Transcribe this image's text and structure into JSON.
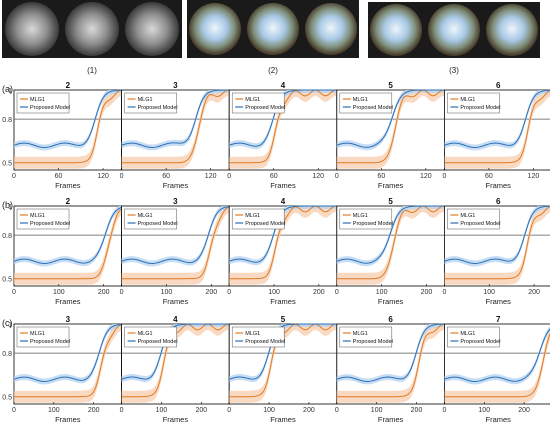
{
  "thumbnail_groups": [
    {
      "label": "(1)",
      "count": 3,
      "style": "indoor"
    },
    {
      "label": "(2)",
      "count": 3,
      "style": "outdoor"
    },
    {
      "label": "(3)",
      "count": 3,
      "style": "outdoor"
    }
  ],
  "chart_data": {
    "type": "line",
    "rows": [
      {
        "label": "(a)",
        "xlabel": "Frames",
        "xlim": [
          0,
          145
        ],
        "xticks": [
          0,
          60,
          120
        ],
        "ylim": [
          0.45,
          1.0
        ],
        "yticks": [
          0.5,
          0.8,
          1
        ],
        "threshold": 0.8,
        "panels": [
          {
            "title": "2",
            "event_frame": 110
          },
          {
            "title": "3",
            "event_frame": 100
          },
          {
            "title": "4",
            "event_frame": 60
          },
          {
            "title": "5",
            "event_frame": 75
          },
          {
            "title": "6",
            "event_frame": 110
          }
        ]
      },
      {
        "label": "(b)",
        "xlabel": "Frames",
        "xlim": [
          0,
          240
        ],
        "xticks": [
          0,
          100,
          200
        ],
        "ylim": [
          0.45,
          1.0
        ],
        "yticks": [
          0.5,
          0.8,
          1
        ],
        "threshold": 0.8,
        "panels": [
          {
            "title": "2",
            "event_frame": 205
          },
          {
            "title": "3",
            "event_frame": 195
          },
          {
            "title": "4",
            "event_frame": 100
          },
          {
            "title": "5",
            "event_frame": 120
          },
          {
            "title": "6",
            "event_frame": 180
          }
        ]
      },
      {
        "label": "(c)",
        "xlabel": "Frames",
        "xlim": [
          0,
          270
        ],
        "xticks": [
          0,
          100,
          200
        ],
        "ylim": [
          0.45,
          1.0
        ],
        "yticks": [
          0.5,
          0.8,
          1
        ],
        "threshold": 0.8,
        "panels": [
          {
            "title": "3",
            "event_frame": 215
          },
          {
            "title": "4",
            "event_frame": 100
          },
          {
            "title": "5",
            "event_frame": 100
          },
          {
            "title": "6",
            "event_frame": 200
          },
          {
            "title": "7",
            "event_frame": 240
          }
        ]
      }
    ],
    "series": [
      {
        "name": "MLG1",
        "color": "#e07b24",
        "band": "#f7c9a6"
      },
      {
        "name": "Proposed Model",
        "color": "#2a6fb8",
        "band": "#b9d5f0"
      }
    ],
    "legend_position": "top-left"
  }
}
